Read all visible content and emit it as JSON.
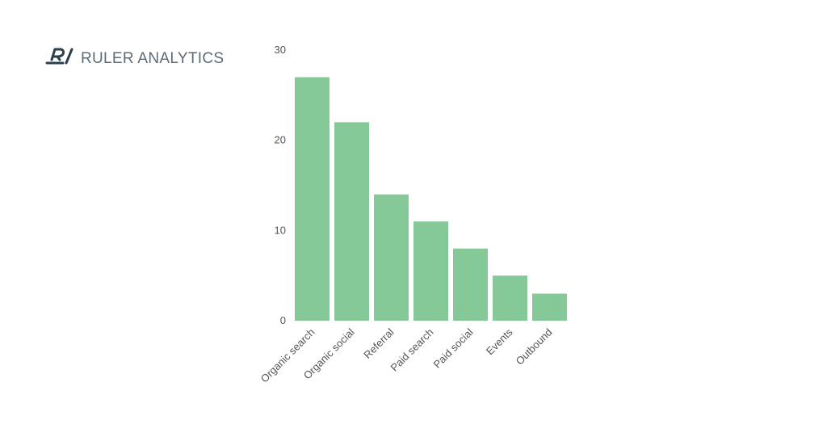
{
  "brand": "RULER ANALYTICS",
  "chart_data": {
    "type": "bar",
    "categories": [
      "Organic search",
      "Organic social",
      "Referral",
      "Paid search",
      "Paid social",
      "Events",
      "Outbound"
    ],
    "values": [
      27,
      22,
      14,
      11,
      8,
      5,
      3
    ],
    "color": "#84c997",
    "ylim": [
      0,
      30
    ],
    "yticks": [
      0,
      10,
      20,
      30
    ],
    "grid": false
  }
}
